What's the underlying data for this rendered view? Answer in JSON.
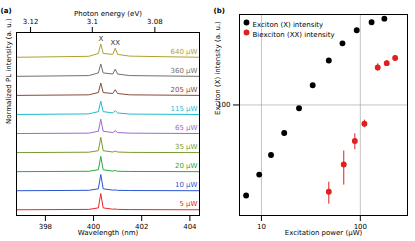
{
  "chart_data": [
    {
      "type": "line",
      "title": "(a)",
      "xlabel": "Wavelength (nm)",
      "ylabel": "Normalized PL intensity (a. u.)",
      "x2label": "Photon energy (eV)",
      "x2ticks": [
        3.12,
        3.1,
        3.08
      ],
      "xlim": [
        396.8,
        404.4
      ],
      "xticks": [
        398,
        400,
        402,
        404
      ],
      "ylim": [
        0,
        9.6
      ],
      "tick_labels": "x",
      "x": [
        396.8,
        399.8,
        400.2,
        400.3,
        400.4,
        400.8,
        400.9,
        401.0,
        401.5,
        404.4
      ],
      "series": [
        {
          "name": "5 µW",
          "color": "#e8262a",
          "values": [
            0.3,
            0.32,
            0.4,
            1.15,
            0.4,
            0.33,
            0.34,
            0.32,
            0.31,
            0.3
          ]
        },
        {
          "name": "10 µW",
          "color": "#2a55d4",
          "values": [
            1.3,
            1.32,
            1.4,
            2.15,
            1.4,
            1.33,
            1.34,
            1.32,
            1.31,
            1.3
          ]
        },
        {
          "name": "20 µW",
          "color": "#2aa83a",
          "values": [
            2.3,
            2.32,
            2.4,
            3.1,
            2.4,
            2.33,
            2.36,
            2.32,
            2.31,
            2.3
          ]
        },
        {
          "name": "35 µW",
          "color": "#7a9a30",
          "values": [
            3.3,
            3.32,
            3.4,
            4.1,
            3.4,
            3.33,
            3.38,
            3.33,
            3.31,
            3.3
          ]
        },
        {
          "name": "65 µW",
          "color": "#9b6ad0",
          "values": [
            4.3,
            4.32,
            4.42,
            5.05,
            4.42,
            4.35,
            4.45,
            4.35,
            4.32,
            4.3
          ]
        },
        {
          "name": "115 µW",
          "color": "#1fbcd0",
          "values": [
            5.3,
            5.33,
            5.45,
            6.0,
            5.45,
            5.38,
            5.5,
            5.38,
            5.32,
            5.3
          ]
        },
        {
          "name": "205 µW",
          "color": "#8a4a3a",
          "values": [
            6.3,
            6.33,
            6.45,
            6.95,
            6.45,
            6.4,
            6.6,
            6.4,
            6.33,
            6.3
          ]
        },
        {
          "name": "360 µW",
          "color": "#707070",
          "values": [
            7.3,
            7.34,
            7.48,
            7.95,
            7.48,
            7.42,
            7.68,
            7.42,
            7.34,
            7.3
          ]
        },
        {
          "name": "640 µW",
          "color": "#b0a030",
          "values": [
            8.3,
            8.35,
            8.5,
            9.0,
            8.5,
            8.45,
            8.78,
            8.45,
            8.36,
            8.3
          ]
        }
      ],
      "annotations": [
        {
          "text": "X",
          "x": 400.3,
          "y": 9.25
        },
        {
          "text": "XX",
          "x": 400.9,
          "y": 9.05
        }
      ]
    },
    {
      "type": "scatter",
      "title": "(b)",
      "xlabel": "Excitation power (µW)",
      "ylabel": "Exciton (X) intensity (a. u.)",
      "log": true,
      "grid": true,
      "legend": "upper left",
      "xlim": [
        6,
        300
      ],
      "xticks": [
        10,
        100
      ],
      "ylim": [
        6,
        1000
      ],
      "yticks": [
        100
      ],
      "series": [
        {
          "name": "Exciton (X) intensity",
          "color": "#000000",
          "marker": "circle",
          "x": [
            7,
            9.5,
            12.5,
            17,
            24,
            33,
            48,
            66,
            92,
            130,
            175
          ],
          "values": [
            10,
            17,
            28,
            49,
            92,
            165,
            310,
            480,
            670,
            820,
            900
          ]
        },
        {
          "name": "Biexciton (XX) intensity",
          "color": "#e02020",
          "marker": "circle",
          "x": [
            48,
            68,
            88,
            110,
            150,
            185,
            225
          ],
          "values": [
            11,
            22,
            40,
            62,
            260,
            290,
            330
          ],
          "errors": [
            3,
            9,
            8,
            6,
            25,
            20,
            20
          ]
        }
      ]
    }
  ]
}
